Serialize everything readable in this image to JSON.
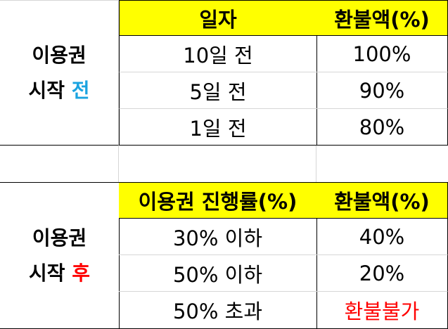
{
  "colors": {
    "header_bg": "#ffff00",
    "before_accent": "#1aa3e0",
    "after_accent": "#ff0000",
    "nonrefund": "#ff0000"
  },
  "before": {
    "label_line1": "이용권",
    "label_line2_prefix": "시작 ",
    "label_line2_accent": "전",
    "col1_header": "일자",
    "col2_header": "환불액(%)",
    "rows": [
      {
        "c1": "10일 전",
        "c2": "100%"
      },
      {
        "c1": "5일 전",
        "c2": "90%"
      },
      {
        "c1": "1일 전",
        "c2": "80%"
      }
    ]
  },
  "after": {
    "label_line1": "이용권",
    "label_line2_prefix": "시작 ",
    "label_line2_accent": "후",
    "col1_header": "이용권 진행률(%)",
    "col2_header": "환불액(%)",
    "rows": [
      {
        "c1": "30% 이하",
        "c2": "40%"
      },
      {
        "c1": "50% 이하",
        "c2": "20%"
      },
      {
        "c1": "50% 초과",
        "c2": "환불불가"
      }
    ]
  }
}
